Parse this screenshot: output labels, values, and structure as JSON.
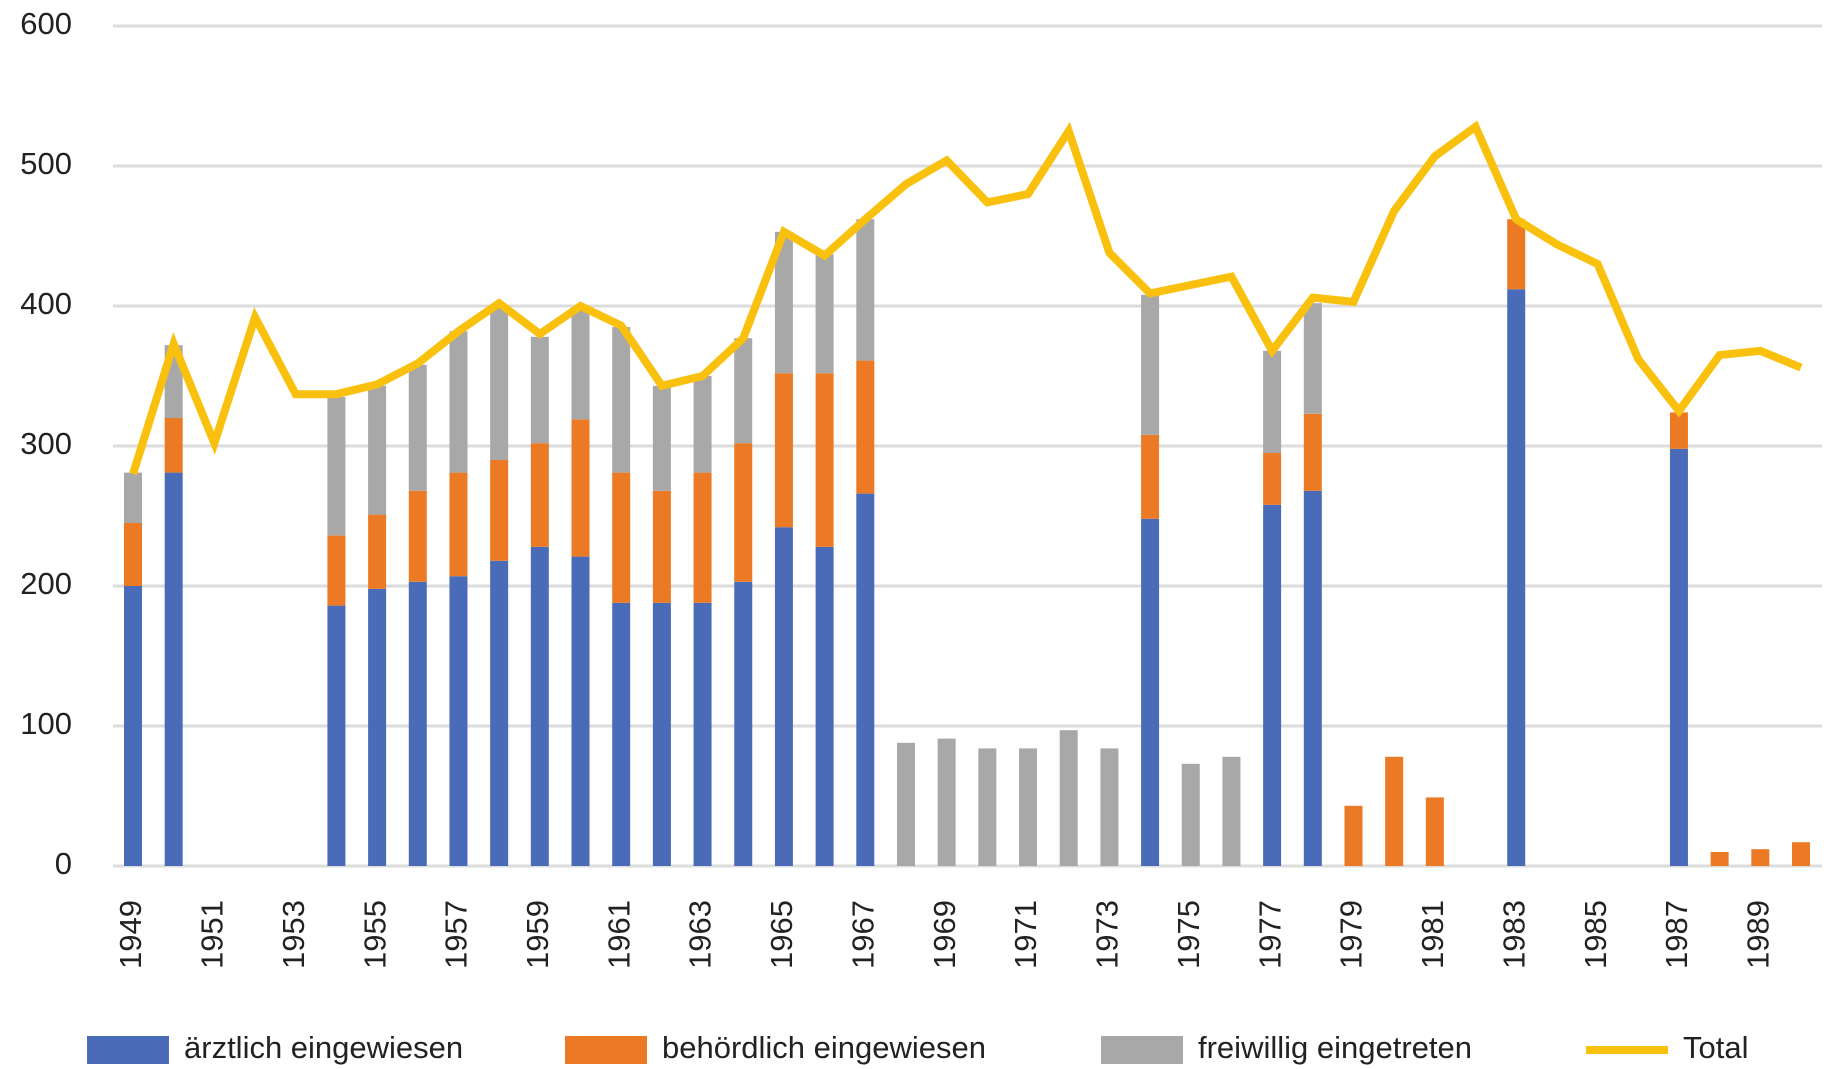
{
  "chart_data": {
    "type": "bar",
    "stacked": true,
    "categories": [
      "1949",
      null,
      "1951",
      null,
      "1953",
      null,
      "1955",
      null,
      "1957",
      null,
      "1959",
      null,
      "1961",
      null,
      "1963",
      null,
      "1965",
      null,
      "1967",
      null,
      "1969",
      null,
      "1971",
      null,
      "1973",
      null,
      "1975",
      null,
      "1977",
      null,
      "1979",
      null,
      "1981",
      null,
      "1983",
      null,
      "1985",
      null,
      "1987",
      null,
      "1989",
      null
    ],
    "series": [
      {
        "name": "ärztlich eingewiesen",
        "color": "#4a6cb8",
        "values": [
          200,
          281,
          null,
          null,
          null,
          186,
          198,
          203,
          207,
          218,
          228,
          221,
          188,
          188,
          188,
          203,
          242,
          228,
          266,
          null,
          null,
          null,
          null,
          null,
          null,
          248,
          null,
          null,
          258,
          268,
          null,
          null,
          null,
          null,
          412,
          null,
          null,
          null,
          298,
          null,
          null,
          null
        ]
      },
      {
        "name": "behördlich eingewiesen",
        "color": "#ec7a24",
        "values": [
          45,
          39,
          null,
          null,
          null,
          50,
          53,
          65,
          74,
          72,
          74,
          98,
          93,
          80,
          93,
          99,
          110,
          124,
          95,
          null,
          null,
          null,
          null,
          null,
          null,
          60,
          null,
          null,
          37,
          55,
          43,
          78,
          49,
          null,
          50,
          null,
          null,
          null,
          26,
          10,
          12,
          17
        ]
      },
      {
        "name": "freiwillig eingetreten",
        "color": "#a8a8a8",
        "values": [
          36,
          52,
          null,
          null,
          null,
          99,
          92,
          90,
          101,
          110,
          76,
          78,
          104,
          75,
          69,
          75,
          101,
          85,
          101,
          88,
          91,
          84,
          84,
          97,
          84,
          100,
          73,
          78,
          73,
          79,
          null,
          null,
          null,
          null,
          null,
          null,
          null,
          null,
          null,
          null,
          null,
          null
        ]
      },
      {
        "name": "Total",
        "type": "line",
        "color": "#f9c10e",
        "values": [
          280,
          373,
          302,
          392,
          337,
          337,
          344,
          359,
          382,
          402,
          380,
          400,
          386,
          343,
          350,
          377,
          453,
          436,
          462,
          487,
          504,
          474,
          480,
          525,
          438,
          409,
          415,
          421,
          368,
          406,
          403,
          468,
          507,
          528,
          462,
          444,
          430,
          362,
          325,
          365,
          368,
          356
        ]
      }
    ],
    "ylim": [
      0,
      600
    ],
    "yticks": [
      0,
      100,
      200,
      300,
      400,
      500,
      600
    ],
    "grid": true,
    "legend": "bottom"
  }
}
